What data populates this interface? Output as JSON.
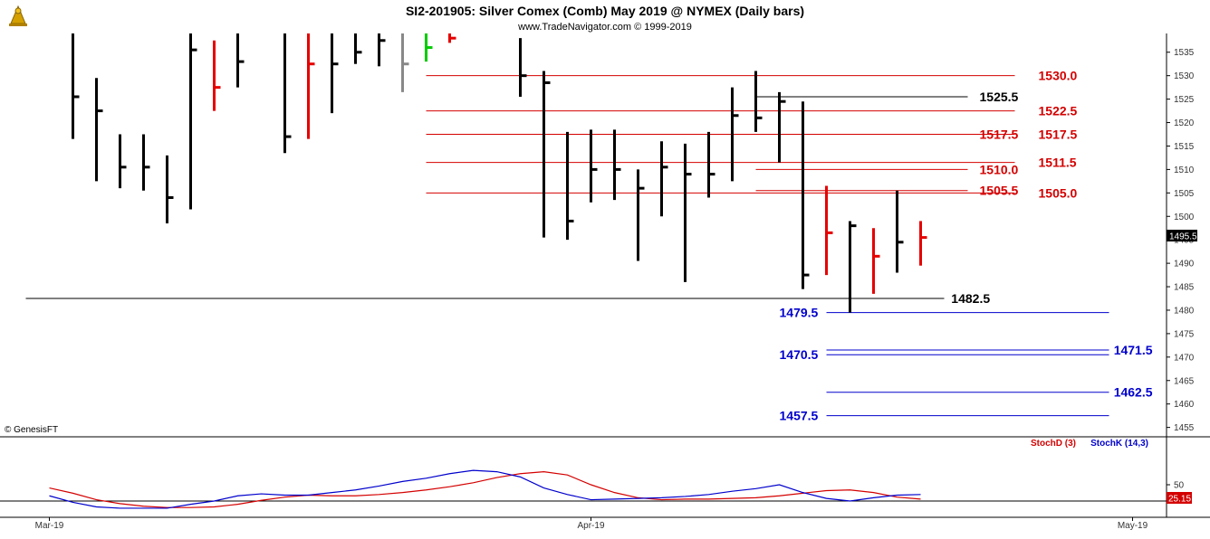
{
  "chart_data": [
    {
      "type": "ohlc",
      "title": "SI2-201905:  Silver Comex (Comb) May 2019 @ NYMEX  (Daily bars)",
      "subtitle": "www.TradeNavigator.com © 1999-2019",
      "copyright": "© GenesisFT",
      "y_ticks": [
        1455,
        1460,
        1465,
        1470,
        1475,
        1480,
        1485,
        1490,
        1495,
        1500,
        1505,
        1510,
        1515,
        1520,
        1525,
        1530,
        1535
      ],
      "ylim": [
        1453,
        1539
      ],
      "current_price": "1495.5",
      "x_labels": [
        {
          "label": "Mar-19",
          "slot": 1
        },
        {
          "label": "Apr-19",
          "slot": 24
        },
        {
          "label": "May-19",
          "slot": 47
        }
      ],
      "bars": [
        {
          "slot": 2,
          "high": 1539,
          "low": 1516.5,
          "close": 1525.5,
          "color": "black"
        },
        {
          "slot": 3,
          "high": 1529.5,
          "low": 1507.5,
          "close": 1522.5,
          "color": "black"
        },
        {
          "slot": 4,
          "high": 1517.5,
          "low": 1506,
          "close": 1510.5,
          "color": "black"
        },
        {
          "slot": 5,
          "high": 1517.5,
          "low": 1505.5,
          "close": 1510.5,
          "color": "black"
        },
        {
          "slot": 6,
          "high": 1513,
          "low": 1498.5,
          "close": 1504,
          "color": "black"
        },
        {
          "slot": 7,
          "high": 1539,
          "low": 1501.5,
          "close": 1535.5,
          "color": "black"
        },
        {
          "slot": 8,
          "high": 1537.5,
          "low": 1522.5,
          "close": 1527.5,
          "color": "red"
        },
        {
          "slot": 9,
          "high": 1539,
          "low": 1527.5,
          "close": 1533,
          "color": "black"
        },
        {
          "slot": 11,
          "high": 1539,
          "low": 1513.5,
          "close": 1517,
          "color": "black"
        },
        {
          "slot": 12,
          "high": 1539,
          "low": 1516.5,
          "close": 1532.5,
          "color": "red"
        },
        {
          "slot": 13,
          "high": 1539,
          "low": 1522,
          "close": 1532.5,
          "color": "black"
        },
        {
          "slot": 14,
          "high": 1539,
          "low": 1532.5,
          "close": 1535,
          "color": "black"
        },
        {
          "slot": 15,
          "high": 1539,
          "low": 1532,
          "close": 1537.5,
          "color": "black"
        },
        {
          "slot": 16,
          "high": 1539,
          "low": 1526.5,
          "close": 1532.5,
          "color": "gray"
        },
        {
          "slot": 17,
          "high": 1539,
          "low": 1533,
          "close": 1536,
          "color": "green"
        },
        {
          "slot": 18,
          "high": 1539,
          "low": 1537,
          "close": 1538,
          "color": "red"
        },
        {
          "slot": 21,
          "high": 1538,
          "low": 1525.5,
          "close": 1530,
          "color": "black"
        },
        {
          "slot": 22,
          "high": 1531,
          "low": 1495.5,
          "close": 1528.5,
          "color": "black"
        },
        {
          "slot": 23,
          "high": 1518,
          "low": 1495,
          "close": 1499,
          "color": "black"
        },
        {
          "slot": 24,
          "high": 1518.5,
          "low": 1503,
          "close": 1510,
          "color": "black"
        },
        {
          "slot": 25,
          "high": 1518.5,
          "low": 1503.5,
          "close": 1510,
          "color": "black"
        },
        {
          "slot": 26,
          "high": 1510,
          "low": 1490.5,
          "close": 1506,
          "color": "black"
        },
        {
          "slot": 27,
          "high": 1516,
          "low": 1500,
          "close": 1510.5,
          "color": "black"
        },
        {
          "slot": 28,
          "high": 1515.5,
          "low": 1486,
          "close": 1509,
          "color": "black"
        },
        {
          "slot": 29,
          "high": 1518,
          "low": 1504,
          "close": 1509,
          "color": "black"
        },
        {
          "slot": 30,
          "high": 1527.5,
          "low": 1507.5,
          "close": 1521.5,
          "color": "black"
        },
        {
          "slot": 31,
          "high": 1531,
          "low": 1518,
          "close": 1521,
          "color": "black"
        },
        {
          "slot": 32,
          "high": 1526.5,
          "low": 1511.5,
          "close": 1524.5,
          "color": "black"
        },
        {
          "slot": 33,
          "high": 1524.5,
          "low": 1484.5,
          "close": 1487.5,
          "color": "black"
        },
        {
          "slot": 34,
          "high": 1506.5,
          "low": 1487.5,
          "close": 1496.5,
          "color": "red"
        },
        {
          "slot": 35,
          "high": 1499,
          "low": 1479.5,
          "close": 1498,
          "color": "black"
        },
        {
          "slot": 36,
          "high": 1497.5,
          "low": 1483.5,
          "close": 1491.5,
          "color": "red"
        },
        {
          "slot": 37,
          "high": 1505.5,
          "low": 1488,
          "close": 1494.5,
          "color": "black"
        },
        {
          "slot": 38,
          "high": 1499,
          "low": 1489.5,
          "close": 1495.5,
          "color": "red"
        }
      ],
      "levels": [
        {
          "label": "1530.0",
          "value": 1530,
          "color": "#d40000",
          "from_slot": 17,
          "to_slot": 42,
          "label_slot": 43,
          "weight": 1
        },
        {
          "label": "1525.5",
          "value": 1525.5,
          "color": "#000000",
          "from_slot": 31,
          "to_slot": 40,
          "label_slot": 40.5,
          "weight": 1
        },
        {
          "label": "1522.5",
          "value": 1522.5,
          "color": "#d40000",
          "from_slot": 17,
          "to_slot": 42,
          "label_slot": 43,
          "weight": 1
        },
        {
          "label": "1517.5",
          "value": 1517.5,
          "color": "#d40000",
          "from_slot": 31,
          "to_slot": 40,
          "label_slot": 40.5,
          "weight": 1
        },
        {
          "label": "1517.5",
          "value": 1517.5,
          "color": "#d40000",
          "from_slot": 17,
          "to_slot": 42,
          "label_slot": 43,
          "weight": 1
        },
        {
          "label": "1511.5",
          "value": 1511.5,
          "color": "#d40000",
          "from_slot": 17,
          "to_slot": 42,
          "label_slot": 43,
          "weight": 1
        },
        {
          "label": "1510.0",
          "value": 1510,
          "color": "#d40000",
          "from_slot": 31,
          "to_slot": 40,
          "label_slot": 40.5,
          "weight": 1
        },
        {
          "label": "1505.5",
          "value": 1505.5,
          "color": "#d40000",
          "from_slot": 31,
          "to_slot": 40,
          "label_slot": 40.5,
          "weight": 1
        },
        {
          "label": "1505.0",
          "value": 1505,
          "color": "#d40000",
          "from_slot": 17,
          "to_slot": 42,
          "label_slot": 43,
          "weight": 1
        },
        {
          "label": "1482.5",
          "value": 1482.5,
          "color": "#000000",
          "from_slot": 0,
          "to_slot": 39,
          "label_slot": 39.3,
          "weight": 1
        },
        {
          "label": "1479.5",
          "value": 1479.5,
          "color": "#0000cc",
          "from_slot": 34,
          "to_slot": 46,
          "label_slot": 32,
          "weight": 1
        },
        {
          "label": "1470.5",
          "value": 1470.5,
          "color": "#0000cc",
          "from_slot": 34,
          "to_slot": 46,
          "label_slot": 32,
          "weight": 1
        },
        {
          "label": "1471.5",
          "value": 1471.5,
          "color": "#0000cc",
          "from_slot": 34,
          "to_slot": 46,
          "label_slot": 46.2,
          "weight": 1
        },
        {
          "label": "1462.5",
          "value": 1462.5,
          "color": "#0000cc",
          "from_slot": 34,
          "to_slot": 46,
          "label_slot": 46.2,
          "weight": 1
        },
        {
          "label": "1457.5",
          "value": 1457.5,
          "color": "#0000cc",
          "from_slot": 34,
          "to_slot": 46,
          "label_slot": 32,
          "weight": 1
        }
      ]
    },
    {
      "type": "line",
      "legend": [
        "StochD (3)",
        "StochK (14,3)"
      ],
      "y_ticks": [
        50
      ],
      "current_value": "25.15",
      "reference_line": 25,
      "ylim": [
        0,
        100
      ],
      "series": [
        {
          "name": "StochD (3)",
          "color": "#d40000",
          "x": [
            1,
            2,
            3,
            4,
            5,
            6,
            7,
            8,
            9,
            10,
            11,
            12,
            13,
            14,
            15,
            16,
            17,
            18,
            19,
            20,
            21,
            22,
            23,
            24,
            25,
            26,
            27,
            28,
            29,
            30,
            31,
            32,
            33,
            34,
            35,
            36,
            37,
            38
          ],
          "values": [
            45,
            37,
            27,
            21,
            17,
            15,
            15,
            16,
            20,
            26,
            31,
            34,
            33,
            33,
            35,
            38,
            42,
            47,
            53,
            61,
            67,
            70,
            65,
            50,
            38,
            30,
            27,
            28,
            28,
            29,
            30,
            33,
            37,
            41,
            42,
            38,
            31,
            28
          ]
        },
        {
          "name": "StochK (14,3)",
          "color": "#0000cc",
          "x": [
            1,
            2,
            3,
            4,
            5,
            6,
            7,
            8,
            9,
            10,
            11,
            12,
            13,
            14,
            15,
            16,
            17,
            18,
            19,
            20,
            21,
            22,
            23,
            24,
            25,
            26,
            27,
            28,
            29,
            30,
            31,
            32,
            33,
            34,
            35,
            36,
            37,
            38
          ],
          "values": [
            33,
            23,
            16,
            14,
            14,
            14,
            20,
            25,
            33,
            36,
            34,
            34,
            38,
            42,
            48,
            55,
            60,
            67,
            72,
            70,
            62,
            45,
            35,
            27,
            28,
            29,
            30,
            32,
            35,
            40,
            44,
            50,
            38,
            29,
            25,
            30,
            34,
            35
          ]
        }
      ]
    }
  ]
}
